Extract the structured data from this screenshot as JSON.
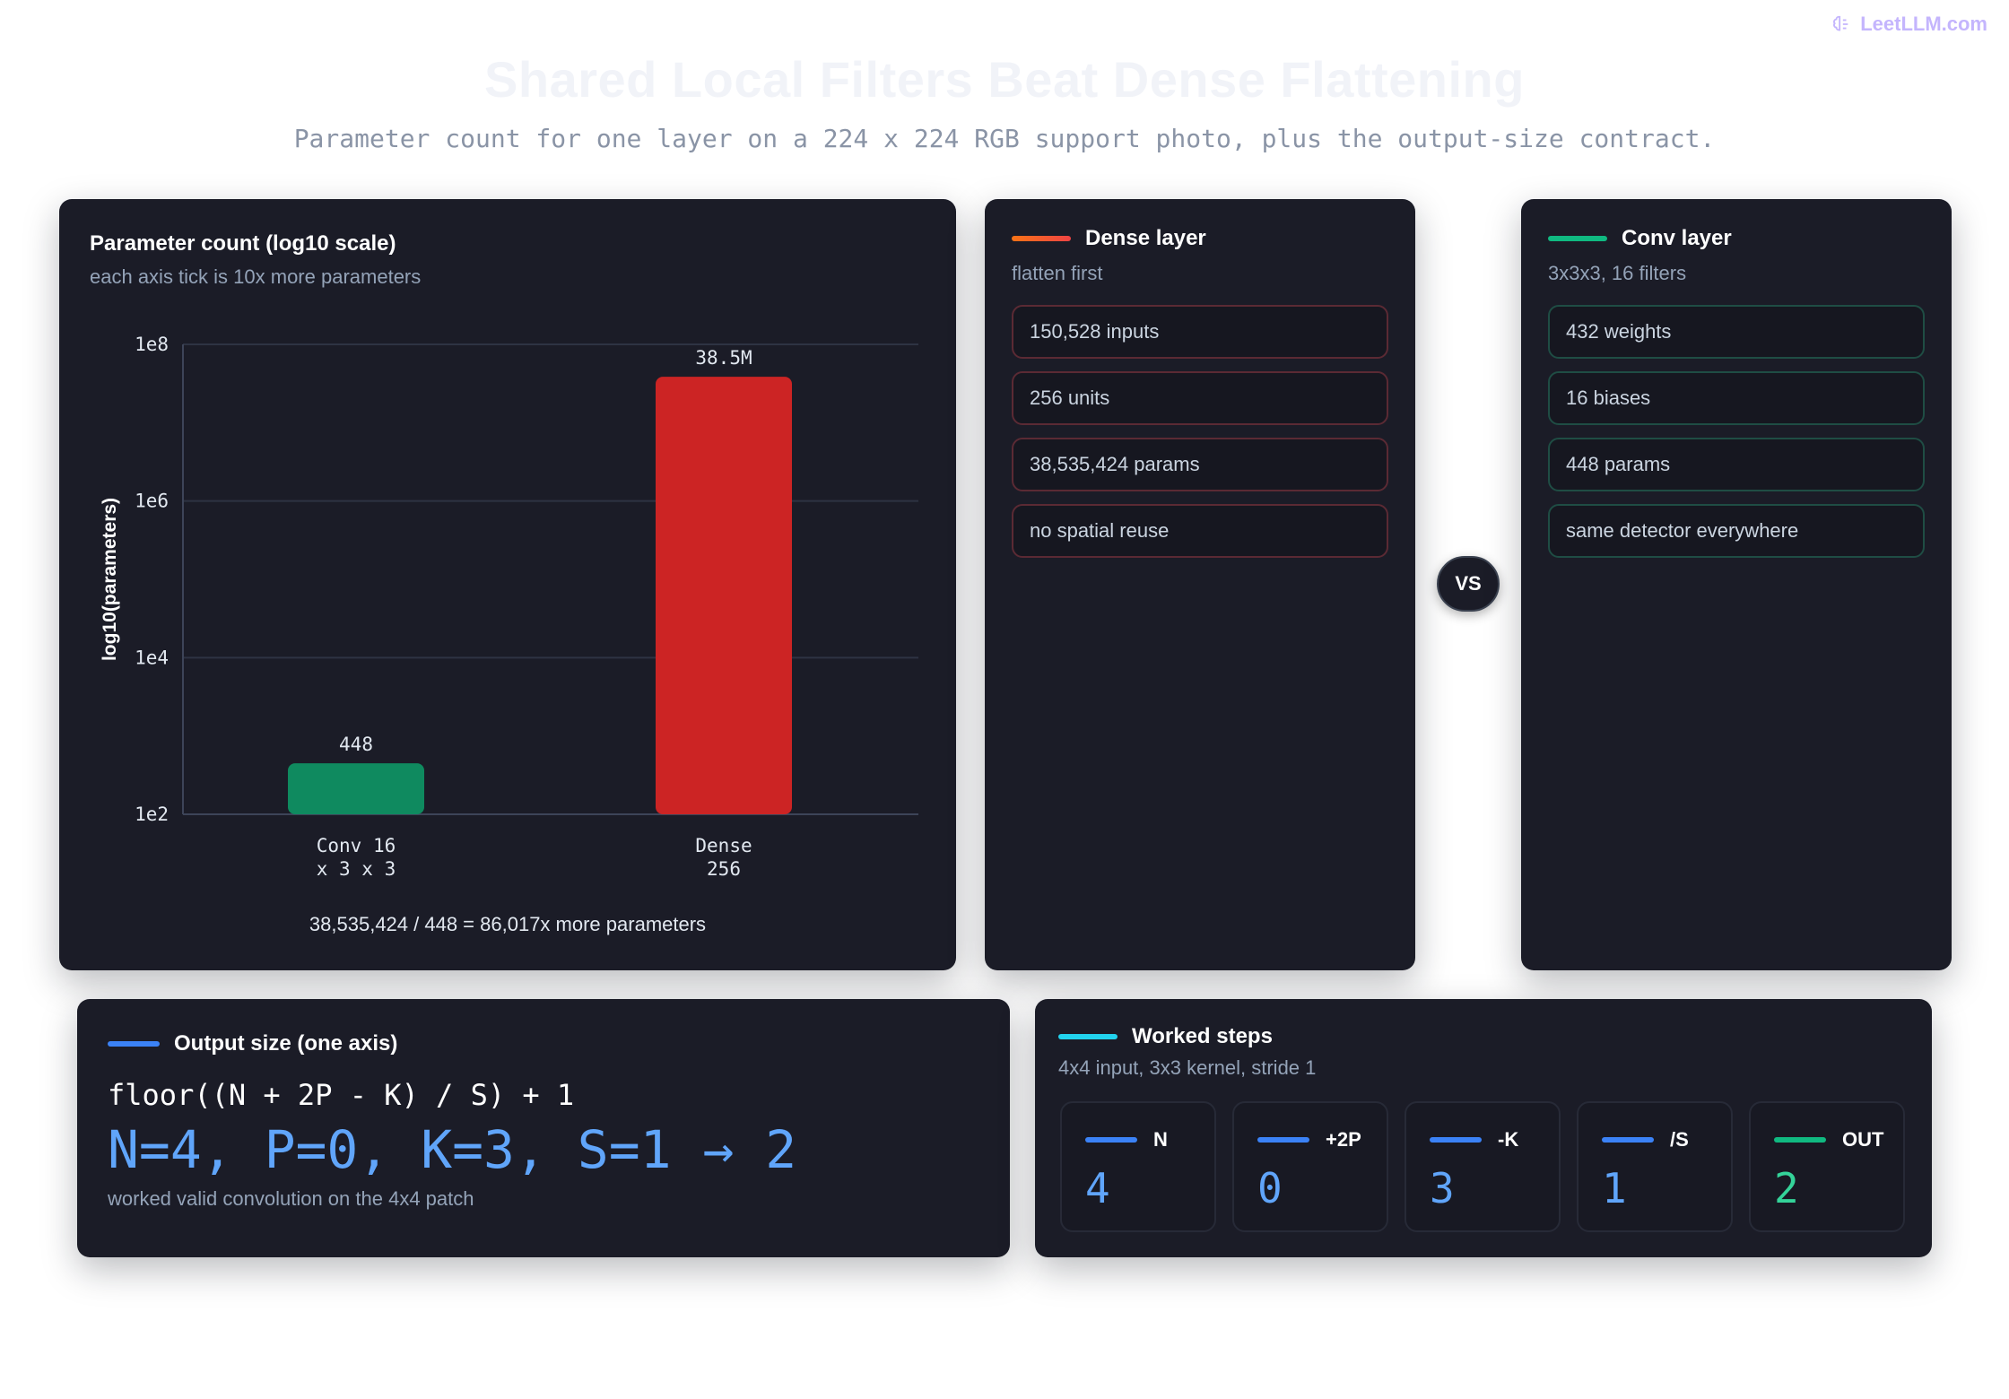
{
  "brand": {
    "name": "LeetLLM.com"
  },
  "header": {
    "title": "Shared Local Filters Beat Dense Flattening",
    "subtitle": "Parameter count for one layer on a 224 x 224 RGB support photo, plus the output-size contract."
  },
  "chart_card": {
    "title": "Parameter count (log10 scale)",
    "subtitle": "each axis tick is 10x more parameters",
    "note": "38,535,424 / 448 = 86,017x more parameters"
  },
  "chart_data": {
    "type": "bar",
    "scale": "log10",
    "categories": [
      "Conv 16 x 3 x 3",
      "Dense 256"
    ],
    "category_lines": [
      [
        "Conv 16",
        "x 3 x 3"
      ],
      [
        "Dense",
        "256"
      ]
    ],
    "values": [
      448,
      38535424
    ],
    "data_labels": [
      "448",
      "38.5M"
    ],
    "colors": [
      "#0f8a5f",
      "#cc2424"
    ],
    "ylabel": "log10(parameters)",
    "yticks": [
      "1e2",
      "1e4",
      "1e6",
      "1e8"
    ],
    "ylim": [
      100,
      100000000
    ],
    "grid": true
  },
  "dense_card": {
    "title": "Dense layer",
    "subtitle": "flatten first",
    "accent": "#f97316",
    "items": [
      "150,528 inputs",
      "256 units",
      "38,535,424 params",
      "no spatial reuse"
    ]
  },
  "vs_label": "VS",
  "conv_card": {
    "title": "Conv layer",
    "subtitle": "3x3x3, 16 filters",
    "accent": "#10b981",
    "items": [
      "432 weights",
      "16 biases",
      "448 params",
      "same detector everywhere"
    ]
  },
  "output_card": {
    "title": "Output size (one axis)",
    "accent": "#3b82f6",
    "formula": "floor((N + 2P - K) / S) + 1",
    "result": "N=4, P=0, K=3, S=1 → 2",
    "note": "worked valid convolution on the 4x4 patch"
  },
  "steps_card": {
    "title": "Worked steps",
    "subtitle": "4x4 input, 3x3 kernel, stride 1",
    "accent": "#22d3ee",
    "steps": [
      {
        "label": "N",
        "value": "4",
        "color": "#3b82f6"
      },
      {
        "label": "+2P",
        "value": "0",
        "color": "#3b82f6"
      },
      {
        "label": "-K",
        "value": "3",
        "color": "#3b82f6"
      },
      {
        "label": "/S",
        "value": "1",
        "color": "#3b82f6"
      },
      {
        "label": "OUT",
        "value": "2",
        "color": "#10b981"
      }
    ]
  }
}
